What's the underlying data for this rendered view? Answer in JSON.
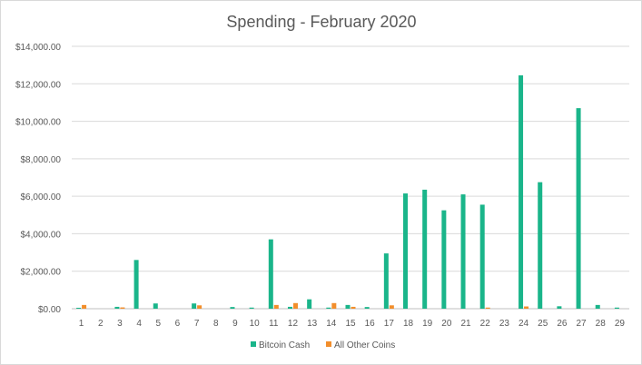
{
  "chart_data": {
    "type": "bar",
    "title": "Spending - February 2020",
    "xlabel": "",
    "ylabel": "",
    "ylim": [
      0,
      14000
    ],
    "yticks": [
      0,
      2000,
      4000,
      6000,
      8000,
      10000,
      12000,
      14000
    ],
    "ytick_labels": [
      "$0.00",
      "$2,000.00",
      "$4,000.00",
      "$6,000.00",
      "$8,000.00",
      "$10,000.00",
      "$12,000.00",
      "$14,000.00"
    ],
    "grid": true,
    "legend_position": "bottom",
    "categories": [
      "1",
      "2",
      "3",
      "4",
      "5",
      "6",
      "7",
      "8",
      "9",
      "10",
      "11",
      "12",
      "13",
      "14",
      "15",
      "16",
      "17",
      "18",
      "19",
      "20",
      "21",
      "22",
      "23",
      "24",
      "25",
      "26",
      "27",
      "28",
      "29"
    ],
    "series": [
      {
        "name": "Bitcoin Cash",
        "color": "#1ab58a",
        "values": [
          50,
          0,
          100,
          2600,
          280,
          0,
          280,
          0,
          90,
          60,
          3700,
          100,
          500,
          60,
          200,
          90,
          2950,
          6150,
          6350,
          5250,
          6100,
          5550,
          0,
          12450,
          6750,
          130,
          10700,
          200,
          60
        ]
      },
      {
        "name": "All Other Coins",
        "color": "#f28e2b",
        "values": [
          200,
          0,
          70,
          0,
          0,
          0,
          180,
          0,
          0,
          0,
          200,
          300,
          0,
          300,
          100,
          0,
          180,
          0,
          0,
          0,
          0,
          60,
          0,
          120,
          0,
          0,
          0,
          0,
          0
        ]
      }
    ]
  }
}
